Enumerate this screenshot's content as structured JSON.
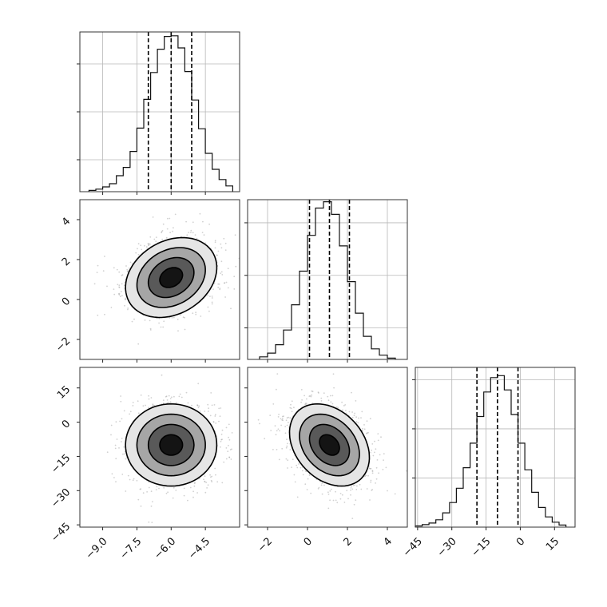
{
  "chart_data": {
    "type": "corner",
    "parameters": [
      {
        "range": [
          -10.0,
          -3.0
        ],
        "ticks": [
          -9.0,
          -7.5,
          -6.0,
          -4.5
        ],
        "tick_labels": [
          "−9.0",
          "−7.5",
          "−6.0",
          "−4.5"
        ],
        "mean": -6.0,
        "std": 1.0,
        "quantiles": [
          -7.0,
          -6.0,
          -5.1
        ]
      },
      {
        "range": [
          -3.0,
          5.0
        ],
        "ticks": [
          -2,
          0,
          2,
          4
        ],
        "tick_labels": [
          "−2",
          "0",
          "2",
          "4"
        ],
        "mean": 1.1,
        "std": 1.0,
        "quantiles": [
          0.1,
          1.1,
          2.1
        ]
      },
      {
        "range": [
          -46.0,
          24.0
        ],
        "ticks": [
          -45,
          -30,
          -15,
          0,
          15
        ],
        "tick_labels": [
          "−45",
          "−30",
          "−15",
          "0",
          "15"
        ],
        "mean": -10.0,
        "std": 9.0,
        "quantiles": [
          -19.0,
          -10.0,
          -1.0
        ]
      }
    ],
    "histograms": [
      {
        "parameter": 0,
        "bin_edges": [
          -9.6,
          -9.3,
          -9.0,
          -8.7,
          -8.4,
          -8.1,
          -7.8,
          -7.5,
          -7.2,
          -6.9,
          -6.6,
          -6.3,
          -6.0,
          -5.7,
          -5.4,
          -5.1,
          -4.8,
          -4.5,
          -4.2,
          -3.9,
          -3.6,
          -3.3
        ],
        "counts": [
          4,
          8,
          15,
          25,
          50,
          76,
          126,
          199,
          289,
          373,
          446,
          486,
          488,
          450,
          376,
          287,
          197,
          120,
          70,
          38,
          18
        ],
        "ylim": [
          0,
          500
        ],
        "yticks": [
          100,
          250,
          400
        ]
      },
      {
        "parameter": 1,
        "bin_edges": [
          -2.4,
          -2.0,
          -1.6,
          -1.2,
          -0.8,
          -0.4,
          0.0,
          0.4,
          0.8,
          1.2,
          1.6,
          2.0,
          2.4,
          2.8,
          3.2,
          3.6,
          4.0,
          4.4
        ],
        "counts": [
          6,
          15,
          35,
          70,
          130,
          210,
          295,
          360,
          375,
          345,
          270,
          185,
          110,
          55,
          25,
          10,
          3
        ],
        "ylim": [
          0,
          380
        ],
        "yticks": [
          75,
          200,
          325
        ]
      },
      {
        "parameter": 2,
        "bin_edges": [
          -46,
          -43,
          -40,
          -37,
          -34,
          -31,
          -28,
          -25,
          -22,
          -19,
          -16,
          -13,
          -10,
          -7,
          -4,
          -1,
          2,
          5,
          8,
          11,
          14,
          17,
          20
        ],
        "counts": [
          3,
          6,
          10,
          18,
          35,
          60,
          95,
          145,
          205,
          270,
          330,
          365,
          370,
          335,
          275,
          205,
          140,
          85,
          48,
          25,
          12,
          5
        ],
        "ylim": [
          0,
          390
        ],
        "yticks": [
          120,
          240,
          360
        ]
      }
    ],
    "pairs": [
      {
        "x_param": 0,
        "y_param": 1,
        "correlation": 0.25
      },
      {
        "x_param": 0,
        "y_param": 2,
        "correlation": 0.0
      },
      {
        "x_param": 1,
        "y_param": 2,
        "correlation": -0.3
      }
    ],
    "contour_levels_sigma": [
      0.5,
      1.0,
      1.5,
      2.0
    ],
    "grid": true,
    "colors": {
      "histogram": "#111111",
      "quantile_lines": "#000000",
      "contours": "#000000",
      "density_fill": "#000000",
      "samples": "#9a9a9a",
      "grid": "#b8b8b8"
    }
  }
}
